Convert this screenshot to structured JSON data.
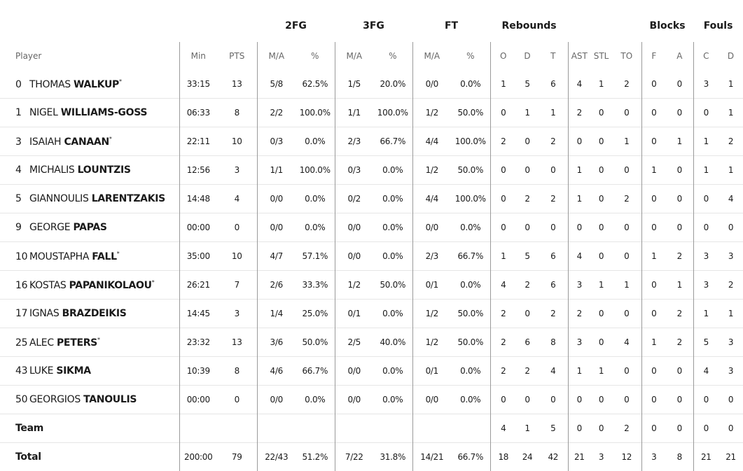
{
  "groups": [
    {
      "label": "",
      "span": 3
    },
    {
      "label": "2FG",
      "span": 2
    },
    {
      "label": "3FG",
      "span": 2
    },
    {
      "label": "FT",
      "span": 2
    },
    {
      "label": "Rebounds",
      "span": 3
    },
    {
      "label": "",
      "span": 3
    },
    {
      "label": "Blocks",
      "span": 2
    },
    {
      "label": "Fouls",
      "span": 2
    }
  ],
  "columns": [
    "Player",
    "Min",
    "PTS",
    "M/A",
    "%",
    "M/A",
    "%",
    "M/A",
    "%",
    "O",
    "D",
    "T",
    "AST",
    "STL",
    "TO",
    "F",
    "A",
    "C",
    "D"
  ],
  "players": [
    {
      "number": "0",
      "first": "THOMAS",
      "last": "WALKUP",
      "starter": true,
      "stats": [
        "33:15",
        "13",
        "5/8",
        "62.5%",
        "1/5",
        "20.0%",
        "0/0",
        "0.0%",
        "1",
        "5",
        "6",
        "4",
        "1",
        "2",
        "0",
        "0",
        "3",
        "1"
      ]
    },
    {
      "number": "1",
      "first": "NIGEL",
      "last": "WILLIAMS-GOSS",
      "starter": false,
      "stats": [
        "06:33",
        "8",
        "2/2",
        "100.0%",
        "1/1",
        "100.0%",
        "1/2",
        "50.0%",
        "0",
        "1",
        "1",
        "2",
        "0",
        "0",
        "0",
        "0",
        "0",
        "1"
      ]
    },
    {
      "number": "3",
      "first": "ISAIAH",
      "last": "CANAAN",
      "starter": true,
      "stats": [
        "22:11",
        "10",
        "0/3",
        "0.0%",
        "2/3",
        "66.7%",
        "4/4",
        "100.0%",
        "2",
        "0",
        "2",
        "0",
        "0",
        "1",
        "0",
        "1",
        "1",
        "2"
      ]
    },
    {
      "number": "4",
      "first": "MICHALIS",
      "last": "LOUNTZIS",
      "starter": false,
      "stats": [
        "12:56",
        "3",
        "1/1",
        "100.0%",
        "0/3",
        "0.0%",
        "1/2",
        "50.0%",
        "0",
        "0",
        "0",
        "1",
        "0",
        "0",
        "1",
        "0",
        "1",
        "1"
      ]
    },
    {
      "number": "5",
      "first": "GIANNOULIS",
      "last": "LARENTZAKIS",
      "starter": false,
      "stats": [
        "14:48",
        "4",
        "0/0",
        "0.0%",
        "0/2",
        "0.0%",
        "4/4",
        "100.0%",
        "0",
        "2",
        "2",
        "1",
        "0",
        "2",
        "0",
        "0",
        "0",
        "4"
      ]
    },
    {
      "number": "9",
      "first": "GEORGE",
      "last": "PAPAS",
      "starter": false,
      "stats": [
        "00:00",
        "0",
        "0/0",
        "0.0%",
        "0/0",
        "0.0%",
        "0/0",
        "0.0%",
        "0",
        "0",
        "0",
        "0",
        "0",
        "0",
        "0",
        "0",
        "0",
        "0"
      ]
    },
    {
      "number": "10",
      "first": "MOUSTAPHA",
      "last": "FALL",
      "starter": true,
      "stats": [
        "35:00",
        "10",
        "4/7",
        "57.1%",
        "0/0",
        "0.0%",
        "2/3",
        "66.7%",
        "1",
        "5",
        "6",
        "4",
        "0",
        "0",
        "1",
        "2",
        "3",
        "3"
      ]
    },
    {
      "number": "16",
      "first": "KOSTAS",
      "last": "PAPANIKOLAOU",
      "starter": true,
      "stats": [
        "26:21",
        "7",
        "2/6",
        "33.3%",
        "1/2",
        "50.0%",
        "0/1",
        "0.0%",
        "4",
        "2",
        "6",
        "3",
        "1",
        "1",
        "0",
        "1",
        "3",
        "2"
      ]
    },
    {
      "number": "17",
      "first": "IGNAS",
      "last": "BRAZDEIKIS",
      "starter": false,
      "stats": [
        "14:45",
        "3",
        "1/4",
        "25.0%",
        "0/1",
        "0.0%",
        "1/2",
        "50.0%",
        "2",
        "0",
        "2",
        "2",
        "0",
        "0",
        "0",
        "2",
        "1",
        "1"
      ]
    },
    {
      "number": "25",
      "first": "ALEC",
      "last": "PETERS",
      "starter": true,
      "stats": [
        "23:32",
        "13",
        "3/6",
        "50.0%",
        "2/5",
        "40.0%",
        "1/2",
        "50.0%",
        "2",
        "6",
        "8",
        "3",
        "0",
        "4",
        "1",
        "2",
        "5",
        "3"
      ]
    },
    {
      "number": "43",
      "first": "LUKE",
      "last": "SIKMA",
      "starter": false,
      "stats": [
        "10:39",
        "8",
        "4/6",
        "66.7%",
        "0/0",
        "0.0%",
        "0/1",
        "0.0%",
        "2",
        "2",
        "4",
        "1",
        "1",
        "0",
        "0",
        "0",
        "4",
        "3"
      ]
    },
    {
      "number": "50",
      "first": "GEORGIOS",
      "last": "TANOULIS",
      "starter": false,
      "stats": [
        "00:00",
        "0",
        "0/0",
        "0.0%",
        "0/0",
        "0.0%",
        "0/0",
        "0.0%",
        "0",
        "0",
        "0",
        "0",
        "0",
        "0",
        "0",
        "0",
        "0",
        "0"
      ]
    }
  ],
  "starter_mark": "*",
  "team": {
    "label": "Team",
    "stats": [
      "",
      "",
      "",
      "",
      "",
      "",
      "",
      "",
      "4",
      "1",
      "5",
      "0",
      "0",
      "2",
      "0",
      "0",
      "0",
      "0"
    ]
  },
  "total": {
    "label": "Total",
    "stats": [
      "200:00",
      "79",
      "22/43",
      "51.2%",
      "7/22",
      "31.8%",
      "14/21",
      "66.7%",
      "18",
      "24",
      "42",
      "21",
      "3",
      "12",
      "3",
      "8",
      "21",
      "21"
    ]
  }
}
